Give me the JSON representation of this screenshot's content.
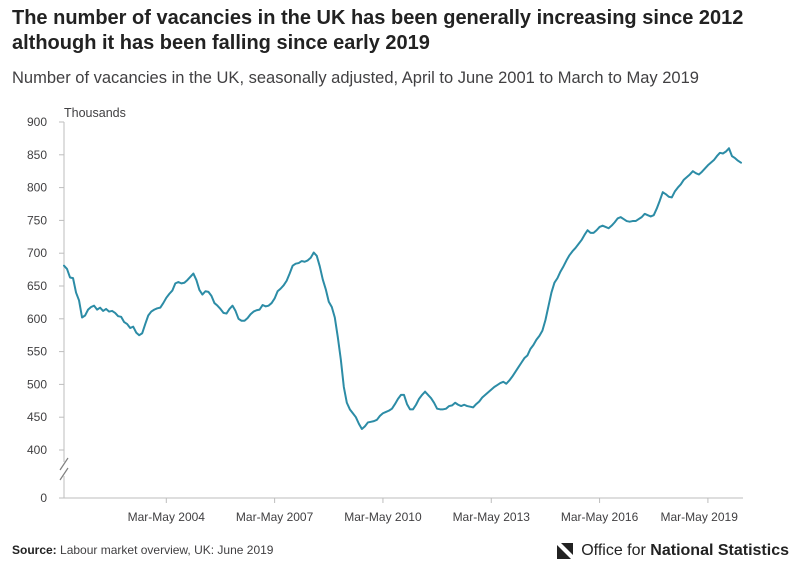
{
  "header": {
    "title": "The number of vacancies in the UK has been generally increasing since 2012 although it has been falling since early 2019",
    "subtitle": "Number of vacancies in the UK, seasonally adjusted, April to June 2001 to March to May 2019"
  },
  "footer": {
    "source_label": "Source:",
    "source_text": "Labour market overview, UK: June 2019",
    "logo_prefix": "Office for",
    "logo_bold": "National Statistics"
  },
  "colors": {
    "line": "#2c8ca6",
    "axis": "#bdbdbd",
    "text": "#414042"
  },
  "chart_data": {
    "type": "line",
    "title": "The number of vacancies in the UK has been generally increasing since 2012 although it has been falling since early 2019",
    "subtitle": "Number of vacancies in the UK, seasonally adjusted, April to June 2001 to March to May 2019",
    "xlabel": "",
    "ylabel": "Thousands",
    "ylim": [
      0,
      900
    ],
    "axis_break": true,
    "y_ticks": [
      0,
      400,
      450,
      500,
      550,
      600,
      650,
      700,
      750,
      800,
      850,
      900
    ],
    "y_tick_labels": [
      "0",
      "400",
      "450",
      "500",
      "550",
      "600",
      "650",
      "700",
      "750",
      "800",
      "850",
      "900"
    ],
    "x_tick_labels": [
      "Mar-May 2004",
      "Mar-May 2007",
      "Mar-May 2010",
      "Mar-May 2013",
      "Mar-May 2016",
      "Mar-May 2019"
    ],
    "x_tick_index": [
      34,
      70,
      106,
      142,
      178,
      214
    ],
    "legend": "none",
    "grid": false,
    "series": [
      {
        "name": "Vacancies (thousands)",
        "start": "Apr-Jun 2001",
        "end": "Mar-May 2019",
        "frequency": "monthly rolling 3-month",
        "values": [
          681,
          676,
          663,
          662,
          640,
          628,
          602,
          605,
          614,
          618,
          620,
          614,
          617,
          612,
          615,
          611,
          612,
          609,
          604,
          603,
          595,
          592,
          586,
          588,
          579,
          575,
          578,
          592,
          605,
          611,
          614,
          616,
          617,
          624,
          632,
          638,
          643,
          654,
          656,
          654,
          655,
          659,
          664,
          669,
          659,
          644,
          637,
          642,
          641,
          635,
          624,
          620,
          615,
          609,
          608,
          615,
          620,
          612,
          600,
          597,
          597,
          601,
          607,
          611,
          613,
          614,
          621,
          619,
          620,
          624,
          631,
          642,
          646,
          651,
          658,
          669,
          681,
          684,
          685,
          688,
          687,
          689,
          693,
          701,
          696,
          680,
          660,
          645,
          626,
          618,
          602,
          572,
          538,
          496,
          472,
          462,
          456,
          450,
          440,
          432,
          436,
          442,
          443,
          444,
          446,
          452,
          456,
          458,
          460,
          463,
          470,
          478,
          484,
          484,
          470,
          462,
          462,
          469,
          478,
          484,
          489,
          484,
          479,
          472,
          463,
          462,
          462,
          463,
          467,
          468,
          472,
          469,
          467,
          469,
          467,
          466,
          465,
          470,
          474,
          480,
          484,
          488,
          492,
          496,
          499,
          502,
          504,
          501,
          506,
          512,
          519,
          526,
          533,
          540,
          544,
          554,
          560,
          568,
          574,
          582,
          598,
          619,
          640,
          655,
          662,
          672,
          680,
          689,
          697,
          703,
          708,
          714,
          720,
          728,
          735,
          731,
          731,
          735,
          740,
          742,
          740,
          738,
          742,
          747,
          753,
          755,
          752,
          749,
          748,
          749,
          749,
          752,
          755,
          760,
          758,
          756,
          758,
          768,
          780,
          793,
          790,
          786,
          785,
          794,
          800,
          805,
          812,
          816,
          820,
          825,
          822,
          820,
          824,
          829,
          834,
          838,
          842,
          848,
          853,
          852,
          855,
          860,
          848,
          845,
          841,
          838
        ]
      }
    ]
  }
}
